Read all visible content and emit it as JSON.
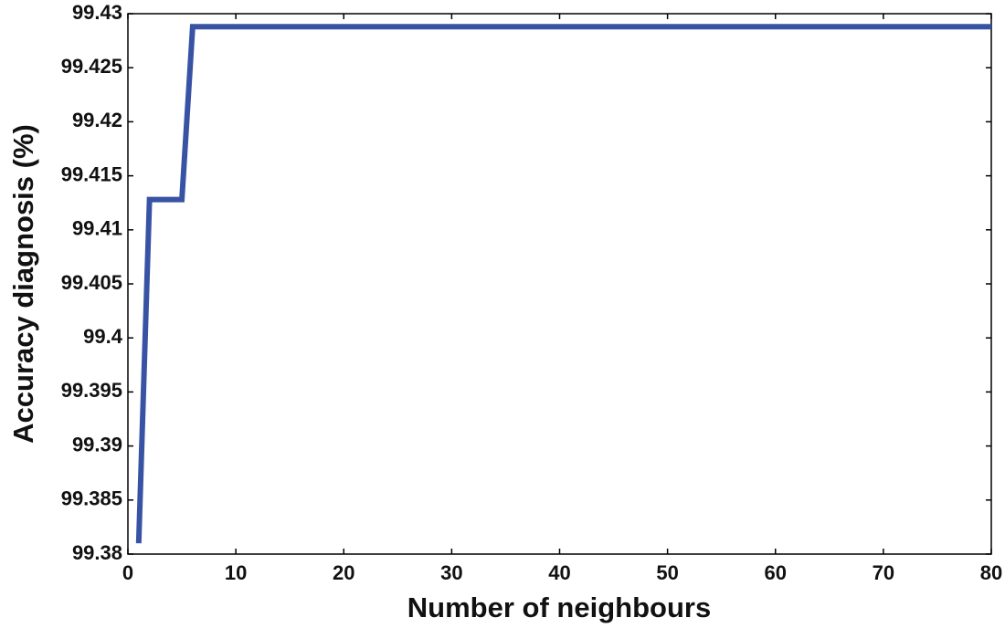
{
  "chart_data": {
    "type": "line",
    "x_label": "Number of neighbours",
    "y_label": "Accuracy diagnosis (%)",
    "x": [
      1,
      2,
      5,
      6,
      80
    ],
    "series": [
      {
        "color": "#3853a4",
        "values": [
          99.381,
          99.4128,
          99.4128,
          99.4288,
          99.4288
        ]
      }
    ],
    "xlim": [
      0,
      80
    ],
    "xticks": [
      0,
      10,
      20,
      30,
      40,
      50,
      60,
      70,
      80
    ],
    "ylim": [
      99.38,
      99.43
    ],
    "yticks": [
      99.38,
      99.385,
      99.39,
      99.395,
      99.4,
      99.405,
      99.41,
      99.415,
      99.42,
      99.425,
      99.43
    ],
    "grid": false
  }
}
